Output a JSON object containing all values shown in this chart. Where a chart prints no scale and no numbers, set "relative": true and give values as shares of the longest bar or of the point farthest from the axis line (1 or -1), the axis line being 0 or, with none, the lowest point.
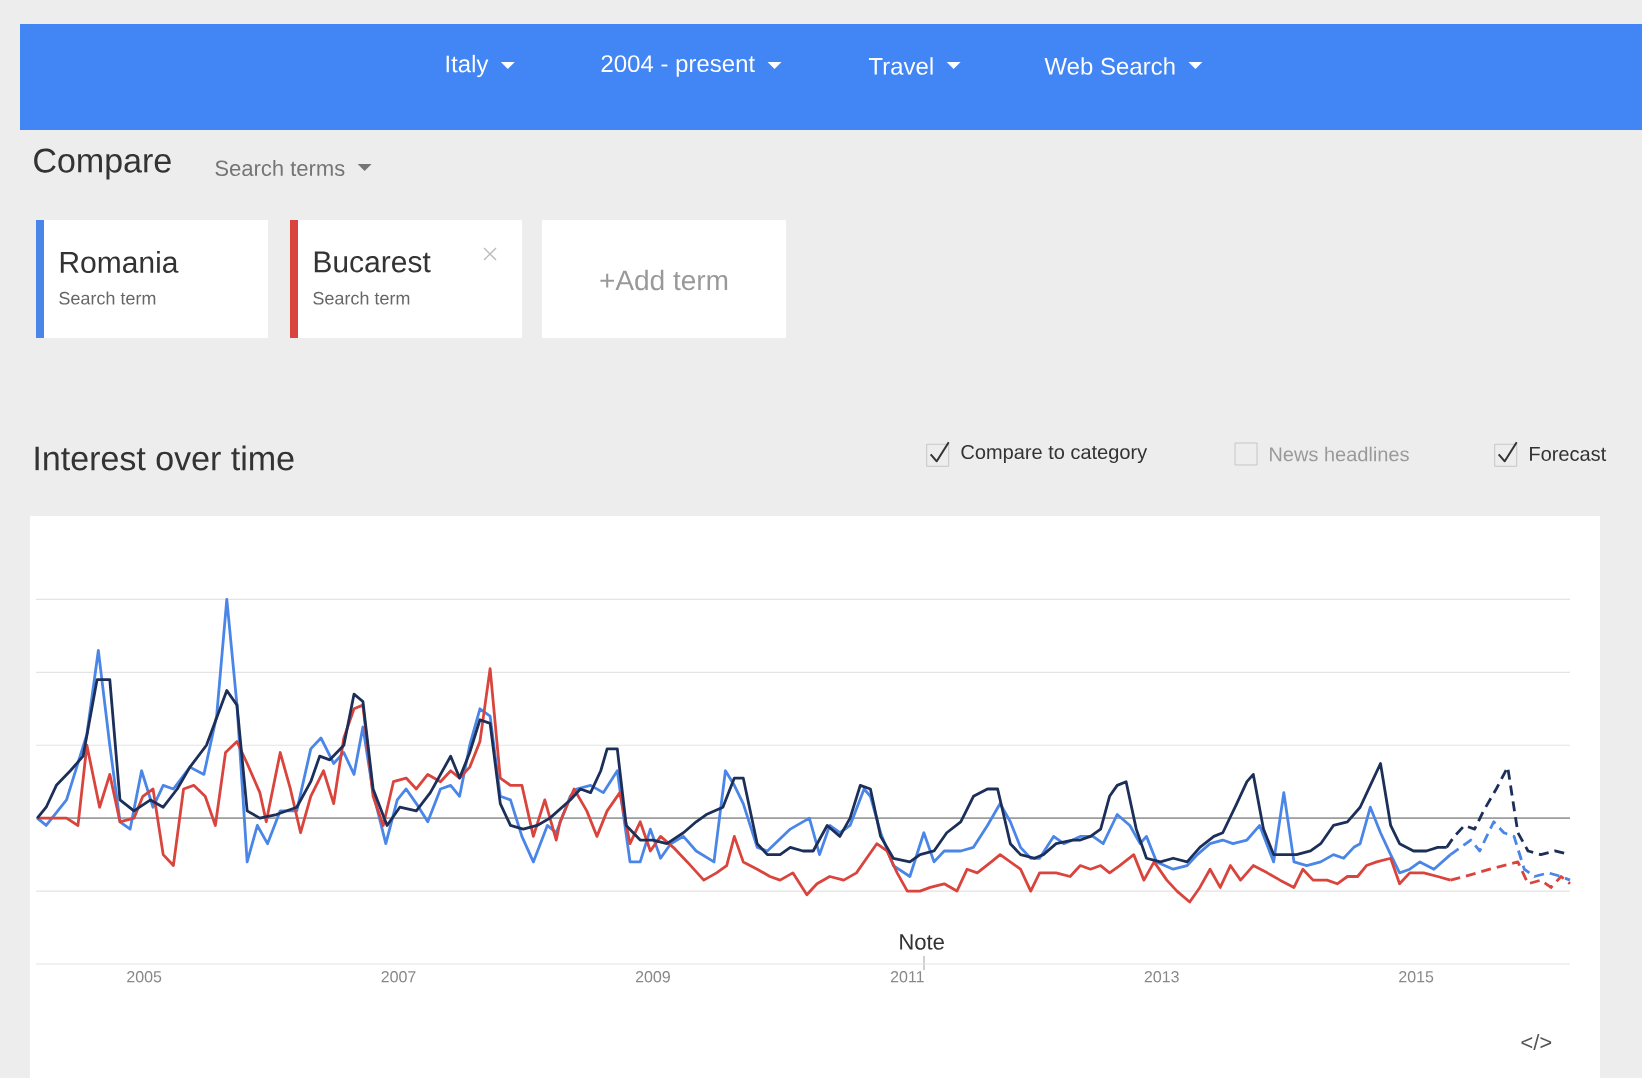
{
  "chart_data": {
    "type": "line",
    "title": "Interest over time",
    "relative": true,
    "legend": "top left",
    "grid": "y",
    "xlim": [
      2004.15,
      2016.21
    ],
    "xticks": [
      2005,
      2007,
      2009,
      2011,
      2013,
      2015
    ],
    "ref_lines": [
      {
        "axis": "y",
        "value": 0.4,
        "color": "#9e9e9e"
      }
    ],
    "annotations": [
      "Italy",
      "2004 - present",
      "Travel",
      "Web Search",
      "Compare",
      "Search terms",
      "Search term",
      "Search term",
      "+Add term",
      "Compare to category",
      "News headlines",
      "Forecast",
      "Note",
      "</>"
    ],
    "series": [
      {
        "name": "Romania",
        "color": "#4a86e8",
        "x": [
          2004.16,
          2004.23,
          2004.39,
          2004.55,
          2004.64,
          2004.73,
          2004.81,
          2004.89,
          2004.98,
          2005.07,
          2005.15,
          2005.23,
          2005.36,
          2005.47,
          2005.57,
          2005.65,
          2005.73,
          2005.81,
          2005.89,
          2005.97,
          2006.07,
          2006.2,
          2006.31,
          2006.39,
          2006.49,
          2006.57,
          2006.65,
          2006.72,
          2006.8,
          2006.9,
          2006.99,
          2007.06,
          2007.14,
          2007.23,
          2007.33,
          2007.41,
          2007.48,
          2007.56,
          2007.64,
          2007.72,
          2007.8,
          2007.88,
          2007.97,
          2008.06,
          2008.17,
          2008.24,
          2008.35,
          2008.4,
          2008.51,
          2008.61,
          2008.72,
          2008.82,
          2008.9,
          2008.98,
          2009.06,
          2009.14,
          2009.24,
          2009.34,
          2009.48,
          2009.57,
          2009.64,
          2009.71,
          2009.82,
          2009.9,
          2010.08,
          2010.23,
          2010.31,
          2010.39,
          2010.47,
          2010.55,
          2010.66,
          2010.71,
          2010.79,
          2010.89,
          2011.02,
          2011.13,
          2011.21,
          2011.29,
          2011.42,
          2011.52,
          2011.63,
          2011.73,
          2011.81,
          2011.89,
          2011.97,
          2012.04,
          2012.15,
          2012.23,
          2012.3,
          2012.36,
          2012.46,
          2012.54,
          2012.65,
          2012.75,
          2012.83,
          2012.88,
          2012.96,
          2013.09,
          2013.2,
          2013.28,
          2013.38,
          2013.48,
          2013.56,
          2013.67,
          2013.77,
          2013.88,
          2013.96,
          2014.04,
          2014.14,
          2014.25,
          2014.35,
          2014.43,
          2014.51,
          2014.56,
          2014.64,
          2014.72,
          2014.8,
          2014.87,
          2014.95,
          2015.03,
          2015.14,
          2015.27
        ],
        "values": [
          0.4,
          0.38,
          0.45,
          0.63,
          0.86,
          0.6,
          0.39,
          0.37,
          0.53,
          0.43,
          0.49,
          0.48,
          0.54,
          0.52,
          0.68,
          1.0,
          0.71,
          0.28,
          0.38,
          0.33,
          0.42,
          0.42,
          0.59,
          0.62,
          0.55,
          0.58,
          0.52,
          0.65,
          0.47,
          0.33,
          0.45,
          0.48,
          0.44,
          0.39,
          0.48,
          0.49,
          0.46,
          0.6,
          0.7,
          0.68,
          0.46,
          0.45,
          0.35,
          0.28,
          0.38,
          0.36,
          0.46,
          0.48,
          0.49,
          0.47,
          0.53,
          0.28,
          0.28,
          0.37,
          0.29,
          0.33,
          0.35,
          0.31,
          0.28,
          0.53,
          0.49,
          0.44,
          0.32,
          0.31,
          0.37,
          0.4,
          0.3,
          0.38,
          0.36,
          0.38,
          0.48,
          0.46,
          0.36,
          0.27,
          0.24,
          0.36,
          0.28,
          0.31,
          0.31,
          0.32,
          0.38,
          0.44,
          0.39,
          0.32,
          0.29,
          0.29,
          0.35,
          0.33,
          0.34,
          0.35,
          0.35,
          0.33,
          0.41,
          0.38,
          0.33,
          0.35,
          0.28,
          0.26,
          0.27,
          0.3,
          0.33,
          0.34,
          0.33,
          0.34,
          0.38,
          0.28,
          0.47,
          0.28,
          0.27,
          0.28,
          0.3,
          0.29,
          0.32,
          0.33,
          0.43,
          0.36,
          0.3,
          0.25,
          0.26,
          0.28,
          0.26,
          0.3
        ]
      },
      {
        "name": "Bucarest",
        "color": "#d9453d",
        "x": [
          2004.16,
          2004.29,
          2004.39,
          2004.48,
          2004.55,
          2004.65,
          2004.73,
          2004.81,
          2004.92,
          2004.99,
          2005.07,
          2005.15,
          2005.23,
          2005.31,
          2005.39,
          2005.48,
          2005.56,
          2005.64,
          2005.73,
          2005.81,
          2005.91,
          2005.96,
          2006.07,
          2006.15,
          2006.23,
          2006.31,
          2006.41,
          2006.49,
          2006.57,
          2006.65,
          2006.72,
          2006.8,
          2006.88,
          2006.96,
          2007.06,
          2007.14,
          2007.23,
          2007.33,
          2007.41,
          2007.48,
          2007.56,
          2007.64,
          2007.72,
          2007.8,
          2007.88,
          2007.97,
          2008.06,
          2008.15,
          2008.24,
          2008.27,
          2008.38,
          2008.48,
          2008.56,
          2008.64,
          2008.74,
          2008.82,
          2008.9,
          2008.98,
          2009.06,
          2009.16,
          2009.27,
          2009.4,
          2009.5,
          2009.58,
          2009.64,
          2009.71,
          2009.82,
          2009.92,
          2010.0,
          2010.1,
          2010.21,
          2010.29,
          2010.39,
          2010.5,
          2010.6,
          2010.68,
          2010.76,
          2010.84,
          2010.92,
          2011.0,
          2011.1,
          2011.18,
          2011.29,
          2011.39,
          2011.47,
          2011.55,
          2011.66,
          2011.73,
          2011.81,
          2011.89,
          2011.97,
          2012.04,
          2012.17,
          2012.28,
          2012.36,
          2012.44,
          2012.52,
          2012.59,
          2012.67,
          2012.78,
          2012.86,
          2012.94,
          2013.04,
          2013.12,
          2013.22,
          2013.3,
          2013.38,
          2013.46,
          2013.54,
          2013.62,
          2013.72,
          2013.83,
          2013.93,
          2014.04,
          2014.11,
          2014.19,
          2014.3,
          2014.38,
          2014.46,
          2014.54,
          2014.61,
          2014.69,
          2014.8,
          2014.87,
          2014.95,
          2015.06,
          2015.17,
          2015.27
        ],
        "values": [
          0.4,
          0.4,
          0.4,
          0.38,
          0.6,
          0.43,
          0.52,
          0.39,
          0.4,
          0.46,
          0.48,
          0.3,
          0.27,
          0.48,
          0.49,
          0.46,
          0.38,
          0.58,
          0.61,
          0.55,
          0.47,
          0.39,
          0.58,
          0.48,
          0.36,
          0.46,
          0.53,
          0.44,
          0.62,
          0.7,
          0.71,
          0.46,
          0.38,
          0.5,
          0.51,
          0.48,
          0.52,
          0.5,
          0.53,
          0.51,
          0.54,
          0.61,
          0.81,
          0.51,
          0.49,
          0.49,
          0.35,
          0.45,
          0.34,
          0.39,
          0.48,
          0.42,
          0.35,
          0.42,
          0.47,
          0.33,
          0.39,
          0.31,
          0.35,
          0.32,
          0.28,
          0.23,
          0.25,
          0.27,
          0.35,
          0.28,
          0.26,
          0.24,
          0.23,
          0.25,
          0.19,
          0.22,
          0.24,
          0.23,
          0.25,
          0.29,
          0.33,
          0.31,
          0.25,
          0.2,
          0.2,
          0.21,
          0.22,
          0.2,
          0.26,
          0.25,
          0.28,
          0.3,
          0.28,
          0.26,
          0.2,
          0.25,
          0.25,
          0.24,
          0.27,
          0.26,
          0.27,
          0.25,
          0.27,
          0.3,
          0.23,
          0.28,
          0.23,
          0.2,
          0.17,
          0.21,
          0.26,
          0.21,
          0.27,
          0.23,
          0.27,
          0.25,
          0.23,
          0.21,
          0.26,
          0.23,
          0.23,
          0.22,
          0.24,
          0.24,
          0.27,
          0.28,
          0.29,
          0.22,
          0.25,
          0.25,
          0.24,
          0.23
        ]
      },
      {
        "color": "#1c2f59",
        "x": [
          2004.16,
          2004.23,
          2004.31,
          2004.42,
          2004.52,
          2004.63,
          2004.73,
          2004.81,
          2004.92,
          2005.05,
          2005.15,
          2005.26,
          2005.36,
          2005.49,
          2005.65,
          2005.73,
          2005.81,
          2005.91,
          2006.04,
          2006.2,
          2006.31,
          2006.38,
          2006.46,
          2006.57,
          2006.65,
          2006.72,
          2006.8,
          2006.91,
          2007.01,
          2007.14,
          2007.25,
          2007.41,
          2007.48,
          2007.56,
          2007.64,
          2007.72,
          2007.8,
          2007.88,
          2007.98,
          2008.09,
          2008.19,
          2008.35,
          2008.43,
          2008.51,
          2008.59,
          2008.64,
          2008.72,
          2008.79,
          2008.9,
          2009.0,
          2009.11,
          2009.24,
          2009.34,
          2009.42,
          2009.55,
          2009.64,
          2009.71,
          2009.82,
          2009.9,
          2010.0,
          2010.08,
          2010.18,
          2010.26,
          2010.37,
          2010.47,
          2010.55,
          2010.63,
          2010.71,
          2010.79,
          2010.89,
          2011.02,
          2011.1,
          2011.21,
          2011.31,
          2011.42,
          2011.52,
          2011.63,
          2011.71,
          2011.81,
          2011.89,
          2012.0,
          2012.07,
          2012.17,
          2012.3,
          2012.36,
          2012.44,
          2012.52,
          2012.59,
          2012.65,
          2012.72,
          2012.8,
          2012.88,
          2012.99,
          2013.09,
          2013.2,
          2013.3,
          2013.41,
          2013.48,
          2013.59,
          2013.67,
          2013.72,
          2013.8,
          2013.88,
          2013.98,
          2014.06,
          2014.17,
          2014.25,
          2014.35,
          2014.46,
          2014.56,
          2014.64,
          2014.72,
          2014.8,
          2014.87,
          2014.98,
          2015.08,
          2015.17,
          2015.24
        ],
        "values": [
          0.4,
          0.43,
          0.49,
          0.53,
          0.57,
          0.78,
          0.78,
          0.45,
          0.42,
          0.45,
          0.43,
          0.48,
          0.54,
          0.6,
          0.75,
          0.71,
          0.42,
          0.4,
          0.41,
          0.43,
          0.5,
          0.57,
          0.56,
          0.6,
          0.74,
          0.72,
          0.48,
          0.38,
          0.43,
          0.42,
          0.47,
          0.57,
          0.51,
          0.58,
          0.67,
          0.66,
          0.44,
          0.38,
          0.37,
          0.38,
          0.4,
          0.45,
          0.48,
          0.47,
          0.53,
          0.59,
          0.59,
          0.38,
          0.34,
          0.34,
          0.33,
          0.36,
          0.39,
          0.41,
          0.43,
          0.51,
          0.51,
          0.33,
          0.3,
          0.3,
          0.32,
          0.31,
          0.31,
          0.38,
          0.35,
          0.4,
          0.49,
          0.48,
          0.35,
          0.29,
          0.28,
          0.3,
          0.31,
          0.36,
          0.39,
          0.46,
          0.48,
          0.48,
          0.33,
          0.3,
          0.29,
          0.3,
          0.33,
          0.34,
          0.34,
          0.35,
          0.37,
          0.46,
          0.49,
          0.5,
          0.37,
          0.29,
          0.28,
          0.29,
          0.28,
          0.32,
          0.35,
          0.36,
          0.44,
          0.5,
          0.52,
          0.37,
          0.3,
          0.3,
          0.3,
          0.31,
          0.33,
          0.38,
          0.39,
          0.43,
          0.49,
          0.55,
          0.38,
          0.33,
          0.31,
          0.31,
          0.32,
          0.32
        ]
      },
      {
        "color": "#4a86e8",
        "line_style": "dashed",
        "x": [
          2015.27,
          2015.35,
          2015.43,
          2015.5,
          2015.61,
          2015.69,
          2015.77,
          2015.85,
          2015.93,
          2016.04,
          2016.14,
          2016.21
        ],
        "values": [
          0.3,
          0.32,
          0.34,
          0.31,
          0.39,
          0.36,
          0.35,
          0.26,
          0.24,
          0.25,
          0.24,
          0.23
        ]
      },
      {
        "color": "#d9453d",
        "line_style": "dashed",
        "x": [
          2015.27,
          2015.38,
          2015.48,
          2015.58,
          2015.69,
          2015.8,
          2015.88,
          2015.98,
          2016.06,
          2016.14,
          2016.21
        ],
        "values": [
          0.23,
          0.24,
          0.25,
          0.26,
          0.27,
          0.28,
          0.22,
          0.23,
          0.21,
          0.24,
          0.22
        ]
      },
      {
        "color": "#1c2f59",
        "line_style": "dashed",
        "x": [
          2015.24,
          2015.3,
          2015.38,
          2015.46,
          2015.53,
          2015.63,
          2015.72,
          2015.8,
          2015.88,
          2015.98,
          2016.09,
          2016.21
        ],
        "values": [
          0.32,
          0.35,
          0.38,
          0.37,
          0.42,
          0.48,
          0.54,
          0.36,
          0.31,
          0.3,
          0.31,
          0.3
        ]
      }
    ]
  }
}
